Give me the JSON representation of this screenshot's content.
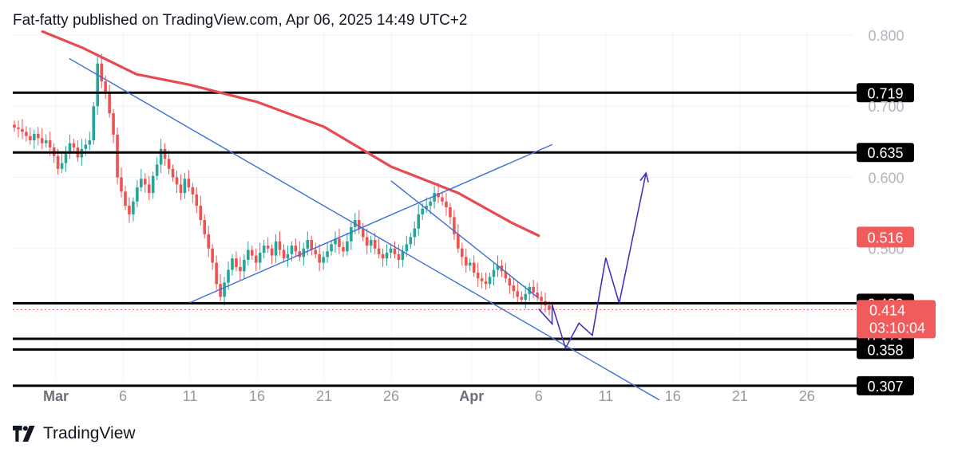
{
  "header": {
    "attribution": "Fat-fatty published on TradingView.com, Apr 06, 2025 14:49 UTC+2"
  },
  "footer": {
    "brand": "TradingView"
  },
  "colors": {
    "up_candle": "#26a69a",
    "down_candle": "#ef5350",
    "moving_average": "#e84a4f",
    "trendline": "#3b6fd6",
    "projection": "#4a2fb8",
    "level_line": "#000000",
    "price_badge": "#f25b5b"
  },
  "chart_data": {
    "type": "candlestick",
    "title": "",
    "xlabel": "",
    "ylabel": "",
    "x_ticks": [
      "Mar",
      "6",
      "11",
      "16",
      "21",
      "26",
      "Apr",
      "6",
      "11",
      "16",
      "21",
      "26"
    ],
    "y_ticks": [
      "0.800",
      "0.700",
      "0.600",
      "0.500"
    ],
    "ylim": [
      0.28,
      0.8
    ],
    "horizontal_levels": [
      {
        "label": "0.719",
        "value": 0.719
      },
      {
        "label": "0.635",
        "value": 0.635
      },
      {
        "label": "0.423",
        "value": 0.423
      },
      {
        "label": "0.373",
        "value": 0.373
      },
      {
        "label": "0.358",
        "value": 0.358
      },
      {
        "label": "0.307",
        "value": 0.307
      }
    ],
    "moving_average_label": "0.516",
    "current_price": {
      "value": "0.414",
      "countdown": "03:10:04"
    },
    "moving_average": [
      {
        "x": "Feb 28",
        "y": 0.805
      },
      {
        "x": "Mar 03",
        "y": 0.782
      },
      {
        "x": "Mar 07",
        "y": 0.745
      },
      {
        "x": "Mar 11",
        "y": 0.73
      },
      {
        "x": "Mar 16",
        "y": 0.706
      },
      {
        "x": "Mar 21",
        "y": 0.671
      },
      {
        "x": "Mar 26",
        "y": 0.615
      },
      {
        "x": "Mar 31",
        "y": 0.578
      },
      {
        "x": "Apr 04",
        "y": 0.536
      },
      {
        "x": "Apr 06",
        "y": 0.518
      }
    ],
    "trendlines": [
      {
        "name": "",
        "from": {
          "x": "Mar 02",
          "y": 0.767
        },
        "to": {
          "x": "Apr 15",
          "y": 0.287
        }
      },
      {
        "name": "",
        "from": {
          "x": "Mar 11",
          "y": 0.424
        },
        "to": {
          "x": "Apr 07",
          "y": 0.646
        }
      },
      {
        "name": "",
        "from": {
          "x": "Mar 26",
          "y": 0.595
        },
        "to": {
          "x": "Apr 06",
          "y": 0.43
        }
      }
    ],
    "projection_path": [
      {
        "x": "Apr 06",
        "y": 0.415
      },
      {
        "x": "Apr 07",
        "y": 0.394
      },
      {
        "x": "Apr 07",
        "y": 0.421
      },
      {
        "x": "Apr 08",
        "y": 0.36
      },
      {
        "x": "Apr 09",
        "y": 0.395
      },
      {
        "x": "Apr 10",
        "y": 0.378
      },
      {
        "x": "Apr 11",
        "y": 0.487
      },
      {
        "x": "Apr 12",
        "y": 0.423
      },
      {
        "x": "Apr 14",
        "y": 0.606
      }
    ],
    "candles_close": [
      0.67,
      0.668,
      0.664,
      0.658,
      0.652,
      0.661,
      0.655,
      0.648,
      0.652,
      0.642,
      0.63,
      0.612,
      0.62,
      0.636,
      0.648,
      0.642,
      0.628,
      0.64,
      0.646,
      0.652,
      0.7,
      0.76,
      0.735,
      0.718,
      0.69,
      0.66,
      0.6,
      0.58,
      0.56,
      0.548,
      0.566,
      0.586,
      0.598,
      0.59,
      0.578,
      0.602,
      0.618,
      0.64,
      0.626,
      0.612,
      0.6,
      0.59,
      0.578,
      0.598,
      0.586,
      0.576,
      0.56,
      0.54,
      0.52,
      0.5,
      0.48,
      0.45,
      0.432,
      0.452,
      0.47,
      0.486,
      0.474,
      0.468,
      0.484,
      0.498,
      0.49,
      0.48,
      0.494,
      0.504,
      0.5,
      0.49,
      0.51,
      0.498,
      0.486,
      0.492,
      0.504,
      0.496,
      0.488,
      0.5,
      0.512,
      0.498,
      0.492,
      0.48,
      0.488,
      0.496,
      0.506,
      0.514,
      0.502,
      0.496,
      0.51,
      0.53,
      0.54,
      0.528,
      0.516,
      0.504,
      0.512,
      0.5,
      0.492,
      0.486,
      0.494,
      0.5,
      0.492,
      0.484,
      0.496,
      0.506,
      0.516,
      0.528,
      0.548,
      0.556,
      0.56,
      0.566,
      0.578,
      0.572,
      0.566,
      0.558,
      0.544,
      0.52,
      0.5,
      0.488,
      0.476,
      0.48,
      0.466,
      0.458,
      0.454,
      0.45,
      0.46,
      0.47,
      0.476,
      0.468,
      0.458,
      0.448,
      0.44,
      0.432,
      0.428,
      0.436,
      0.446,
      0.438,
      0.432,
      0.426,
      0.42,
      0.414
    ]
  }
}
